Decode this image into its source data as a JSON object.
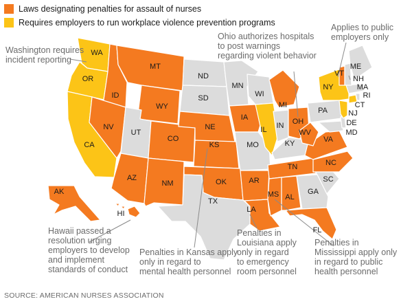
{
  "colors": {
    "penalties": "#f47a20",
    "prevention": "#fcc417",
    "none": "#dcdcdc",
    "border": "#ffffff",
    "label": "#1a1a1a",
    "annotation": "#6b6b6b",
    "leader": "#8a8a8a"
  },
  "legend": [
    {
      "key": "penalties",
      "label": "Laws designating penalties for assault of nurses"
    },
    {
      "key": "prevention",
      "label": "Requires employers to run workplace violence prevention programs"
    }
  ],
  "states": [
    {
      "abbr": "WA",
      "category": "prevention"
    },
    {
      "abbr": "OR",
      "category": "prevention"
    },
    {
      "abbr": "CA",
      "category": "prevention"
    },
    {
      "abbr": "ID",
      "category": "penalties"
    },
    {
      "abbr": "NV",
      "category": "penalties"
    },
    {
      "abbr": "MT",
      "category": "penalties"
    },
    {
      "abbr": "WY",
      "category": "penalties"
    },
    {
      "abbr": "UT",
      "category": "none"
    },
    {
      "abbr": "AZ",
      "category": "penalties"
    },
    {
      "abbr": "CO",
      "category": "penalties"
    },
    {
      "abbr": "NM",
      "category": "penalties"
    },
    {
      "abbr": "ND",
      "category": "none"
    },
    {
      "abbr": "SD",
      "category": "none"
    },
    {
      "abbr": "NE",
      "category": "penalties"
    },
    {
      "abbr": "KS",
      "category": "penalties"
    },
    {
      "abbr": "OK",
      "category": "penalties"
    },
    {
      "abbr": "TX",
      "category": "none"
    },
    {
      "abbr": "MN",
      "category": "none"
    },
    {
      "abbr": "IA",
      "category": "penalties"
    },
    {
      "abbr": "MO",
      "category": "none"
    },
    {
      "abbr": "AR",
      "category": "penalties"
    },
    {
      "abbr": "LA",
      "category": "penalties"
    },
    {
      "abbr": "WI",
      "category": "none"
    },
    {
      "abbr": "IL",
      "category": "prevention"
    },
    {
      "abbr": "MI",
      "category": "penalties"
    },
    {
      "abbr": "IN",
      "category": "none"
    },
    {
      "abbr": "OH",
      "category": "penalties"
    },
    {
      "abbr": "KY",
      "category": "none"
    },
    {
      "abbr": "TN",
      "category": "penalties"
    },
    {
      "abbr": "MS",
      "category": "penalties"
    },
    {
      "abbr": "AL",
      "category": "penalties"
    },
    {
      "abbr": "GA",
      "category": "none"
    },
    {
      "abbr": "FL",
      "category": "penalties"
    },
    {
      "abbr": "SC",
      "category": "none"
    },
    {
      "abbr": "NC",
      "category": "penalties"
    },
    {
      "abbr": "VA",
      "category": "penalties"
    },
    {
      "abbr": "WV",
      "category": "penalties"
    },
    {
      "abbr": "PA",
      "category": "none"
    },
    {
      "abbr": "MD",
      "category": "none"
    },
    {
      "abbr": "DE",
      "category": "none"
    },
    {
      "abbr": "NJ",
      "category": "prevention"
    },
    {
      "abbr": "NY",
      "category": "prevention"
    },
    {
      "abbr": "CT",
      "category": "prevention"
    },
    {
      "abbr": "RI",
      "category": "none"
    },
    {
      "abbr": "MA",
      "category": "none"
    },
    {
      "abbr": "VT",
      "category": "penalties"
    },
    {
      "abbr": "NH",
      "category": "none"
    },
    {
      "abbr": "ME",
      "category": "none"
    },
    {
      "abbr": "AK",
      "category": "penalties"
    },
    {
      "abbr": "HI",
      "category": "penalties"
    }
  ],
  "annotations": [
    {
      "id": "washington",
      "lines": [
        "Washington requires",
        "incident reporting"
      ]
    },
    {
      "id": "ohio",
      "lines": [
        "Ohio authorizes hospitals",
        "to post warnings",
        "regarding violent behavior"
      ]
    },
    {
      "id": "public",
      "lines": [
        "Applies to public",
        "employers only"
      ]
    },
    {
      "id": "hawaii",
      "lines": [
        "Hawaii passed a",
        "resolution urging",
        "employers to develop",
        "and implement",
        "standards of conduct"
      ]
    },
    {
      "id": "kansas",
      "lines": [
        "Penalties in Kansas apply",
        "only in regard to",
        "mental health personnel"
      ]
    },
    {
      "id": "louisiana",
      "lines": [
        "Penalties in",
        "Louisiana apply",
        "only in regard",
        "to emergency",
        "room personnel"
      ]
    },
    {
      "id": "mississippi",
      "lines": [
        "Penalties in",
        "Mississippi apply only",
        "in regard to public",
        "health personnel"
      ]
    }
  ],
  "source": "SOURCE: AMERICAN NURSES ASSOCIATION"
}
